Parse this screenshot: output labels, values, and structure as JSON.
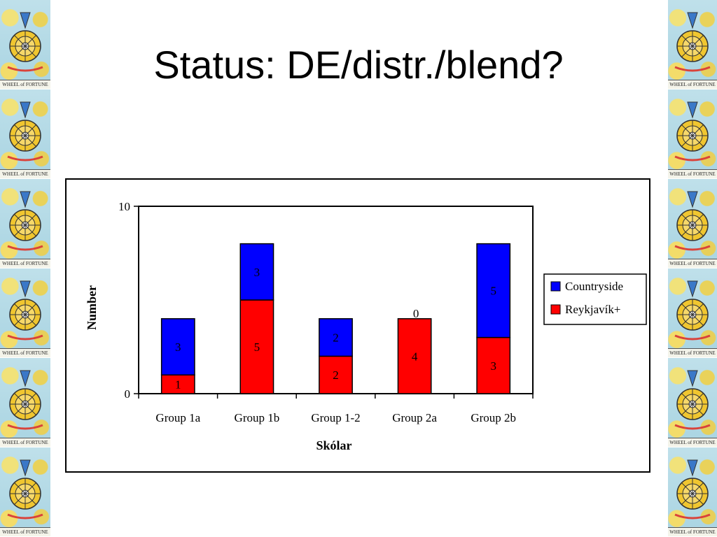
{
  "slide": {
    "title": "Status: DE/distr./blend?",
    "border_caption": "WHEEL of FORTUNE",
    "border_icon": "wheel-of-fortune-card-icon"
  },
  "chart_data": {
    "type": "bar",
    "stacked": true,
    "categories": [
      "Group 1a",
      "Group 1b",
      "Group 1-2",
      "Group 2a",
      "Group 2b"
    ],
    "series": [
      {
        "name": "Reykjavík+",
        "values": [
          1,
          5,
          2,
          4,
          3
        ],
        "color": "#ff0000"
      },
      {
        "name": "Countryside",
        "values": [
          3,
          3,
          2,
          0,
          5
        ],
        "color": "#0000ff"
      }
    ],
    "legend_labels": [
      "Countryside",
      "Reykjavík+"
    ],
    "xlabel": "Skólar",
    "ylabel": "Number",
    "ylim": [
      0,
      10
    ],
    "yticks": [
      0,
      10
    ],
    "legend_position": "right",
    "grid": false
  }
}
